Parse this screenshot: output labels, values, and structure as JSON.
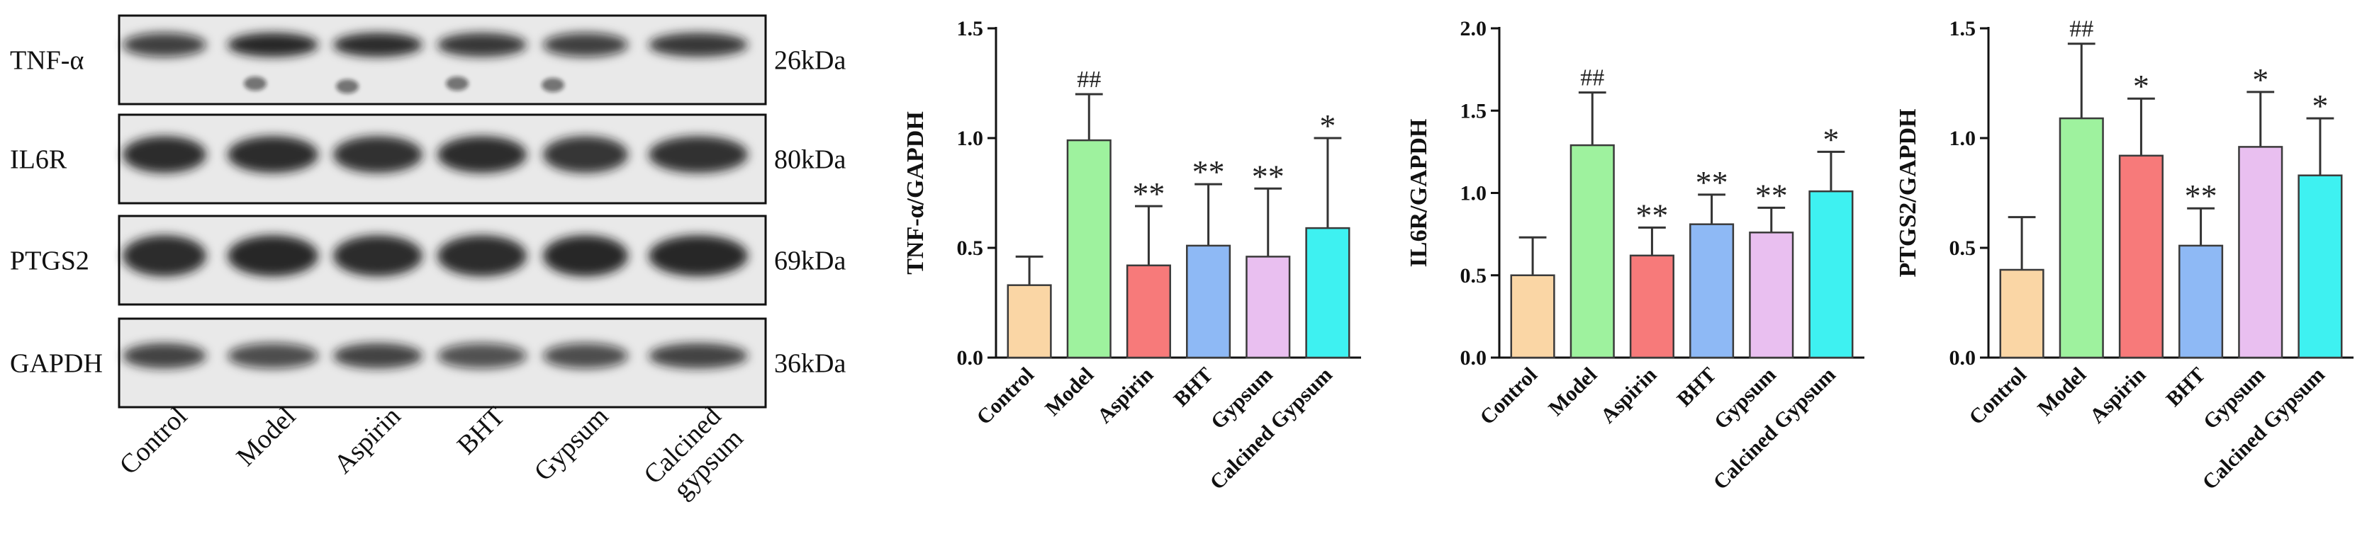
{
  "western_blot": {
    "proteins": [
      {
        "name": "TNF-α",
        "size": "26kDa"
      },
      {
        "name": "IL6R",
        "size": "80kDa"
      },
      {
        "name": "PTGS2",
        "size": "69kDa"
      },
      {
        "name": "GAPDH",
        "size": "36kDa"
      }
    ],
    "lanes": [
      "Control",
      "Model",
      "Aspirin",
      "BHT",
      "Gypsum",
      "Calcined\ngypsum"
    ]
  },
  "chart_data": [
    {
      "type": "bar",
      "title": "",
      "xlabel": "",
      "ylabel": "TNF-α/GAPDH",
      "ylim": [
        0,
        1.5
      ],
      "yticks": [
        "0.0",
        "0.5",
        "1.0",
        "1.5"
      ],
      "categories": [
        "Control",
        "Model",
        "Aspirin",
        "BHT",
        "Gypsum",
        "Calcined Gypsum"
      ],
      "values": [
        0.33,
        0.99,
        0.42,
        0.51,
        0.46,
        0.59
      ],
      "errors": [
        0.13,
        0.21,
        0.27,
        0.28,
        0.31,
        0.41
      ],
      "annotations": [
        "",
        "##",
        "**",
        "**",
        "**",
        "*"
      ],
      "colors": [
        "#FAD6A5",
        "#9EF29E",
        "#F77A7A",
        "#8EB9F5",
        "#E9BFF0",
        "#3EF1F1"
      ],
      "grid": false,
      "legend": "none"
    },
    {
      "type": "bar",
      "title": "",
      "xlabel": "",
      "ylabel": "IL6R/GAPDH",
      "ylim": [
        0,
        2.0
      ],
      "yticks": [
        "0.0",
        "0.5",
        "1.0",
        "1.5",
        "2.0"
      ],
      "categories": [
        "Control",
        "Model",
        "Aspirin",
        "BHT",
        "Gypsum",
        "Calcined Gypsum"
      ],
      "values": [
        0.5,
        1.29,
        0.62,
        0.81,
        0.76,
        1.01
      ],
      "errors": [
        0.23,
        0.32,
        0.17,
        0.18,
        0.15,
        0.24
      ],
      "annotations": [
        "",
        "##",
        "**",
        "**",
        "**",
        "*"
      ],
      "colors": [
        "#FAD6A5",
        "#9EF29E",
        "#F77A7A",
        "#8EB9F5",
        "#E9BFF0",
        "#3EF1F1"
      ],
      "grid": false,
      "legend": "none"
    },
    {
      "type": "bar",
      "title": "",
      "xlabel": "",
      "ylabel": "PTGS2/GAPDH",
      "ylim": [
        0,
        1.5
      ],
      "yticks": [
        "0.0",
        "0.5",
        "1.0",
        "1.5"
      ],
      "categories": [
        "Control",
        "Model",
        "Aspirin",
        "BHT",
        "Gypsum",
        "Calcined Gypsum"
      ],
      "values": [
        0.4,
        1.09,
        0.92,
        0.51,
        0.96,
        0.83
      ],
      "errors": [
        0.24,
        0.34,
        0.26,
        0.17,
        0.25,
        0.26
      ],
      "annotations": [
        "",
        "##",
        "*",
        "**",
        "*",
        "*"
      ],
      "colors": [
        "#FAD6A5",
        "#9EF29E",
        "#F77A7A",
        "#8EB9F5",
        "#E9BFF0",
        "#3EF1F1"
      ],
      "grid": false,
      "legend": "none"
    }
  ]
}
